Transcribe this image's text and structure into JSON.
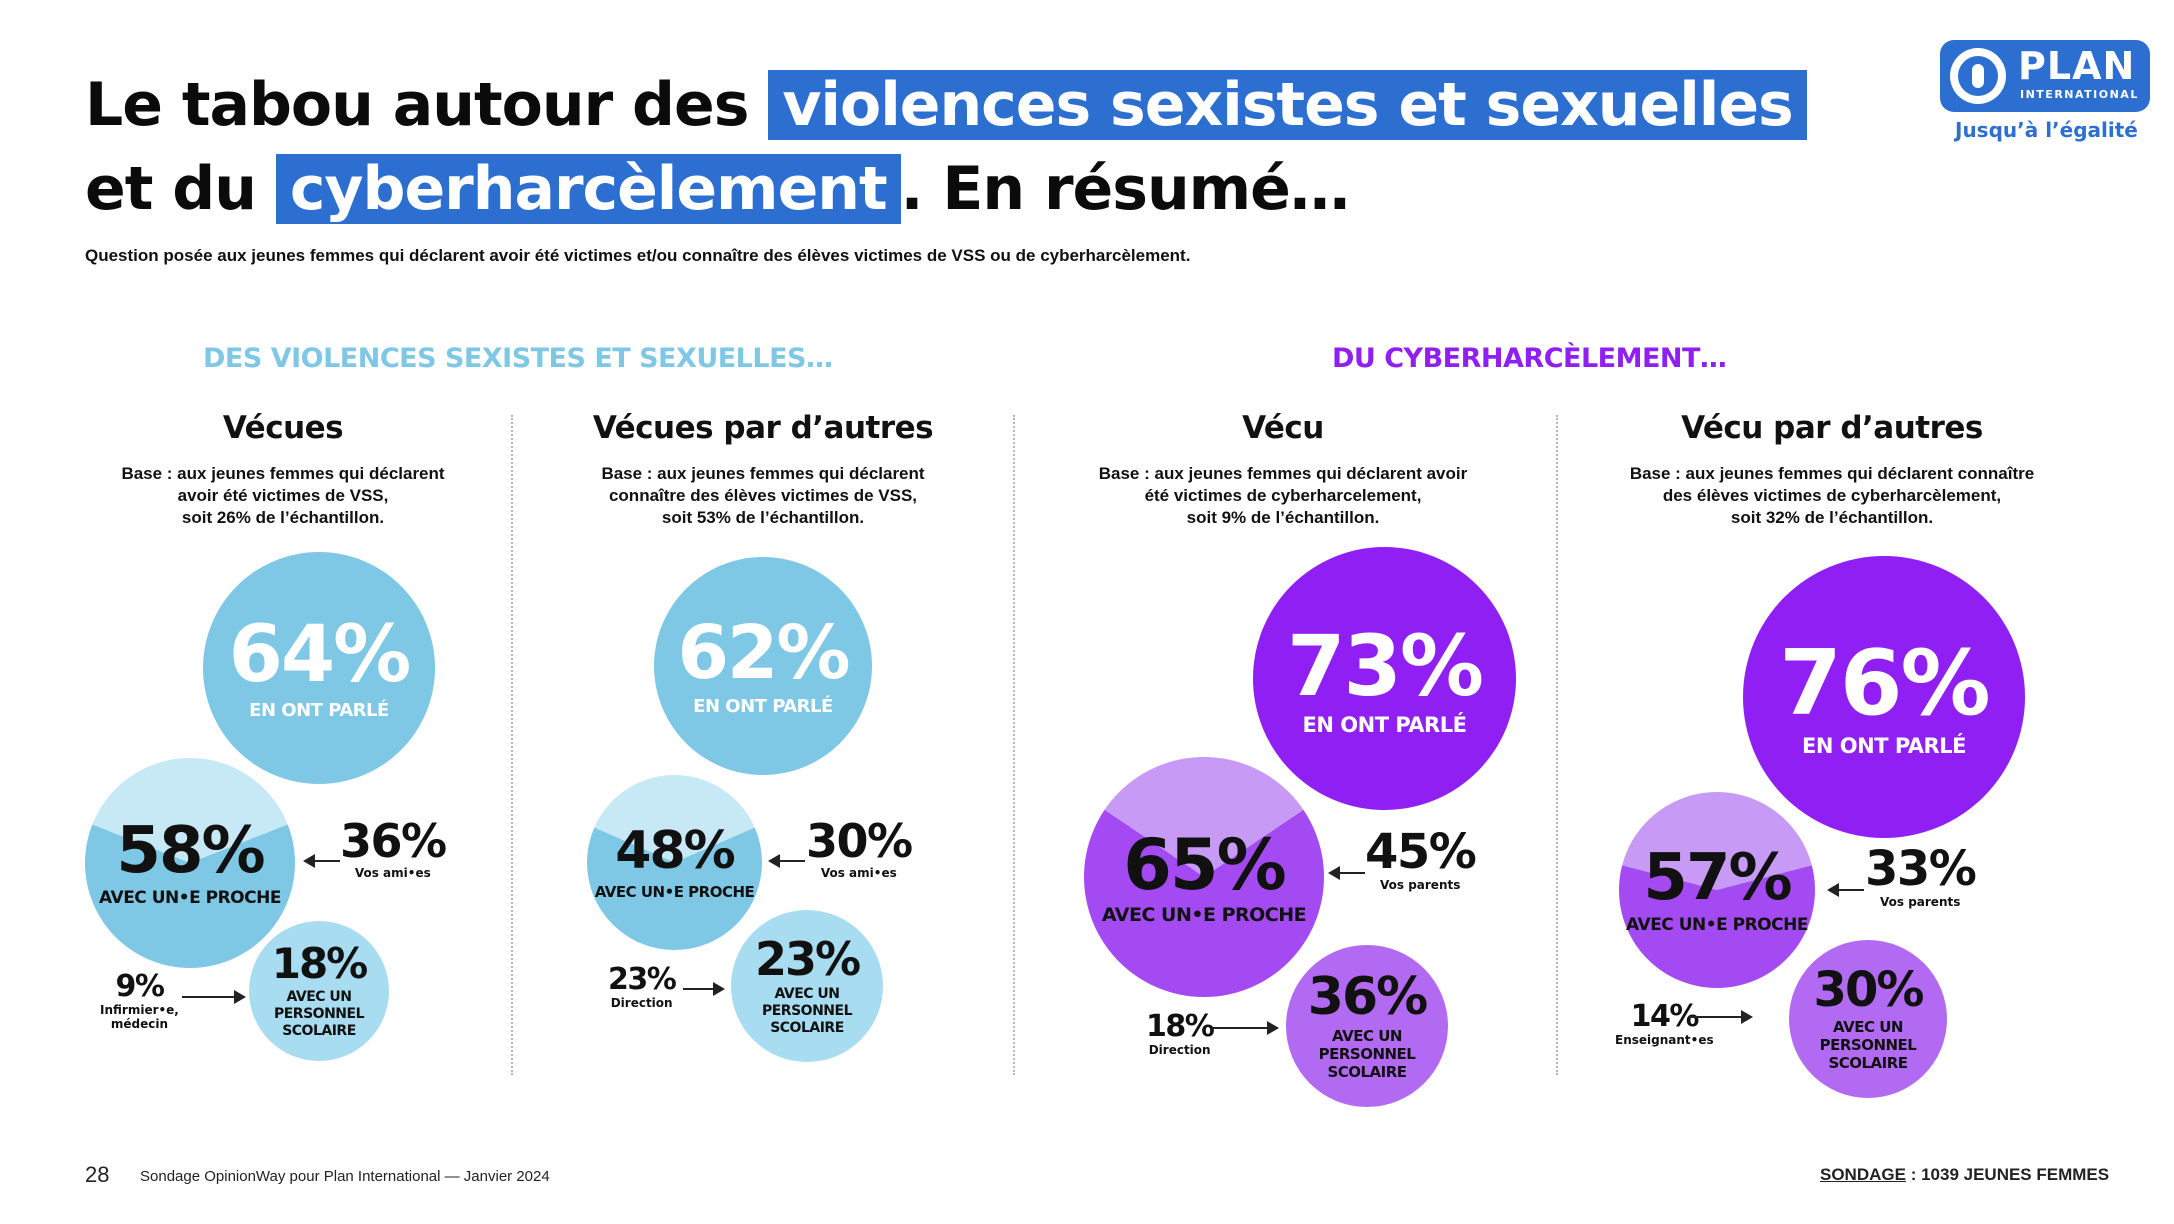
{
  "title": {
    "line1_plain": "Le tabou autour des",
    "line1_highlight": "violences sexistes et sexuelles",
    "line2_plain_a": "et du",
    "line2_highlight": "cyberharcèlement",
    "line2_plain_b": ". En résumé…"
  },
  "subtitle": "Question posée aux jeunes femmes qui déclarent avoir été victimes et/ou connaître des élèves victimes de VSS ou de cyberharcèlement.",
  "logo": {
    "name": "PLAN",
    "sub": "INTERNATIONAL",
    "tagline": "Jusqu’à l’égalité"
  },
  "colors": {
    "light_blue": "#7ec8e6",
    "pale_blue": "#a8dcf0",
    "purple": "#8f1ff2",
    "light_purple": "#c79af5",
    "mid_purple": "#b26af3",
    "title_highlight": "#2c6fd1"
  },
  "sections": [
    {
      "heading": "DES VIOLENCES SEXISTES ET SEXUELLES…",
      "color": "#7ec8e6"
    },
    {
      "heading": "DU CYBERHARCÈLEMENT…",
      "color": "#8f1ff2"
    }
  ],
  "columns": [
    {
      "title": "Vécues",
      "base": "Base : aux jeunes femmes qui déclarent\navoir été victimes de VSS,\nsoit 26% de l’échantillon.",
      "main": {
        "value": "64%",
        "label": "EN ONT PARLÉ"
      },
      "proche": {
        "value": "58%",
        "label": "AVEC UN•E PROCHE",
        "share": 0.62
      },
      "proche_side": {
        "value": "36%",
        "label": "Vos ami•es"
      },
      "scolaire": {
        "value": "18%",
        "label": "AVEC UN\nPERSONNEL\nSCOLAIRE"
      },
      "scolaire_side": {
        "value": "9%",
        "label": "Infirmier•e,\nmédecin"
      }
    },
    {
      "title": "Vécues par d’autres",
      "base": "Base : aux jeunes femmes qui déclarent\nconnaître des élèves victimes de VSS,\nsoit 53% de l’échantillon.",
      "main": {
        "value": "62%",
        "label": "EN ONT PARLÉ"
      },
      "proche": {
        "value": "48%",
        "label": "AVEC UN•E PROCHE",
        "share": 0.63
      },
      "proche_side": {
        "value": "30%",
        "label": "Vos ami•es"
      },
      "scolaire": {
        "value": "23%",
        "label": "AVEC UN\nPERSONNEL\nSCOLAIRE"
      },
      "scolaire_side": {
        "value": "23%",
        "label": "Direction"
      }
    },
    {
      "title": "Vécu",
      "base": "Base : aux jeunes femmes qui déclarent avoir\nété victimes de cyberharcelement,\nsoit 9% de l’échantillon.",
      "main": {
        "value": "73%",
        "label": "EN ONT PARLÉ"
      },
      "proche": {
        "value": "65%",
        "label": "AVEC UN•E PROCHE",
        "share": 0.69
      },
      "proche_side": {
        "value": "45%",
        "label": "Vos parents"
      },
      "scolaire": {
        "value": "36%",
        "label": "AVEC UN\nPERSONNEL\nSCOLAIRE"
      },
      "scolaire_side": {
        "value": "18%",
        "label": "Direction"
      }
    },
    {
      "title": "Vécu par d’autres",
      "base": "Base : aux jeunes femmes qui déclarent connaître\ndes élèves victimes de cyberharcèlement,\nsoit 32% de l’échantillon.",
      "main": {
        "value": "76%",
        "label": "EN ONT PARLÉ"
      },
      "proche": {
        "value": "57%",
        "label": "AVEC UN•E PROCHE",
        "share": 0.58
      },
      "proche_side": {
        "value": "33%",
        "label": "Vos parents"
      },
      "scolaire": {
        "value": "30%",
        "label": "AVEC UN\nPERSONNEL\nSCOLAIRE"
      },
      "scolaire_side": {
        "value": "14%",
        "label": "Enseignant•es"
      }
    }
  ],
  "footer": {
    "page": "28",
    "source": "Sondage OpinionWay pour Plan International — Janvier 2024",
    "survey_label": "SONDAGE",
    "survey_value": " : 1039 JEUNES FEMMES"
  }
}
